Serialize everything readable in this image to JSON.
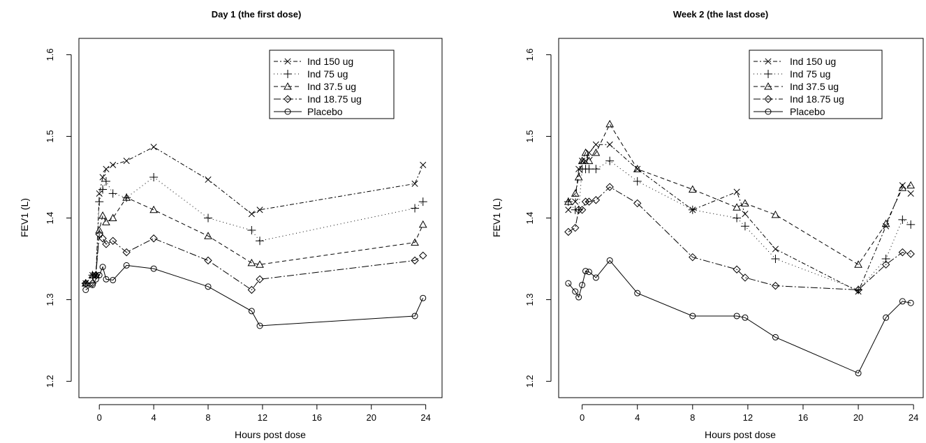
{
  "colors": {
    "ink": "#000000",
    "background": "#ffffff"
  },
  "chart_data": [
    {
      "type": "line",
      "title": "Day 1 (the first dose)",
      "xlabel": "Hours post dose",
      "ylabel": "FEV1 (L)",
      "xlim": [
        -1.5,
        25.2
      ],
      "ylim": [
        1.18,
        1.62
      ],
      "xticks": [
        0,
        4,
        8,
        12,
        16,
        20,
        24
      ],
      "yticks": [
        1.2,
        1.3,
        1.4,
        1.5,
        1.6
      ],
      "grid": false,
      "legend_position": "top-right",
      "series": [
        {
          "name": "Ind 150 ug",
          "marker": "x",
          "dash": "6,3,2,3",
          "x": [
            -1,
            -0.5,
            -0.25,
            0,
            0.25,
            0.5,
            1,
            2,
            4,
            8,
            11.2,
            11.8,
            23.2,
            23.8
          ],
          "y": [
            1.32,
            1.33,
            1.33,
            1.43,
            1.45,
            1.46,
            1.465,
            1.47,
            1.487,
            1.447,
            1.405,
            1.41,
            1.442,
            1.465
          ]
        },
        {
          "name": "Ind 75 ug",
          "marker": "plus",
          "dash": "1,4",
          "x": [
            -1,
            -0.5,
            -0.25,
            0,
            0.25,
            0.5,
            1,
            2,
            4,
            8,
            11.2,
            11.8,
            23.2,
            23.8
          ],
          "y": [
            1.32,
            1.33,
            1.33,
            1.42,
            1.435,
            1.445,
            1.43,
            1.425,
            1.45,
            1.4,
            1.385,
            1.372,
            1.412,
            1.42
          ]
        },
        {
          "name": "Ind 37.5 ug",
          "marker": "triangle",
          "dash": "6,4",
          "x": [
            -1,
            -0.5,
            -0.25,
            0,
            0.25,
            0.5,
            1,
            2,
            4,
            8,
            11.2,
            11.8,
            23.2,
            23.8
          ],
          "y": [
            1.32,
            1.33,
            1.33,
            1.385,
            1.403,
            1.395,
            1.4,
            1.425,
            1.41,
            1.378,
            1.345,
            1.343,
            1.37,
            1.392
          ]
        },
        {
          "name": "Ind 18.75 ug",
          "marker": "diamond",
          "dash": "10,3,2,3",
          "x": [
            -1,
            -0.5,
            -0.25,
            0,
            0.25,
            0.5,
            1,
            2,
            4,
            8,
            11.2,
            11.8,
            23.2,
            23.8
          ],
          "y": [
            1.32,
            1.32,
            1.33,
            1.38,
            1.375,
            1.368,
            1.372,
            1.358,
            1.375,
            1.348,
            1.312,
            1.325,
            1.348,
            1.354
          ]
        },
        {
          "name": "Placebo",
          "marker": "circle",
          "dash": "",
          "x": [
            -1,
            -0.5,
            -0.25,
            0,
            0.25,
            0.5,
            1,
            2,
            4,
            8,
            11.2,
            11.8,
            23.2,
            23.8
          ],
          "y": [
            1.312,
            1.318,
            1.325,
            1.33,
            1.34,
            1.325,
            1.324,
            1.342,
            1.338,
            1.316,
            1.286,
            1.268,
            1.28,
            1.302
          ]
        }
      ]
    },
    {
      "type": "line",
      "title": "Week 2 (the last dose)",
      "xlabel": "Hours post dose",
      "ylabel": "FEV1 (L)",
      "xlim": [
        -1.7,
        24.7
      ],
      "ylim": [
        1.18,
        1.62
      ],
      "xticks": [
        0,
        4,
        8,
        12,
        16,
        20,
        24
      ],
      "yticks": [
        1.2,
        1.3,
        1.4,
        1.5,
        1.6
      ],
      "grid": false,
      "legend_position": "top-right",
      "series": [
        {
          "name": "Ind 150 ug",
          "marker": "x",
          "dash": "6,3,2,3",
          "x": [
            -1,
            -0.5,
            -0.25,
            0,
            0.25,
            0.5,
            1,
            2,
            4,
            8,
            11.2,
            11.8,
            14,
            20,
            22,
            23.2,
            23.8
          ],
          "y": [
            1.41,
            1.42,
            1.46,
            1.47,
            1.47,
            1.48,
            1.49,
            1.49,
            1.46,
            1.41,
            1.432,
            1.405,
            1.362,
            1.31,
            1.39,
            1.44,
            1.43
          ]
        },
        {
          "name": "Ind 75 ug",
          "marker": "plus",
          "dash": "1,4",
          "x": [
            -1,
            -0.5,
            -0.25,
            0,
            0.25,
            0.5,
            1,
            2,
            4,
            8,
            11.2,
            11.8,
            14,
            20,
            22,
            23.2,
            23.8
          ],
          "y": [
            1.42,
            1.41,
            1.41,
            1.46,
            1.46,
            1.46,
            1.46,
            1.47,
            1.445,
            1.41,
            1.4,
            1.39,
            1.35,
            1.312,
            1.35,
            1.398,
            1.392
          ]
        },
        {
          "name": "Ind 37.5 ug",
          "marker": "triangle",
          "dash": "6,4",
          "x": [
            -1,
            -0.5,
            -0.25,
            0,
            0.25,
            0.5,
            1,
            2,
            4,
            8,
            11.2,
            11.8,
            14,
            20,
            22,
            23.2,
            23.8
          ],
          "y": [
            1.42,
            1.43,
            1.45,
            1.47,
            1.48,
            1.47,
            1.48,
            1.515,
            1.46,
            1.435,
            1.413,
            1.418,
            1.404,
            1.343,
            1.393,
            1.437,
            1.44
          ]
        },
        {
          "name": "Ind 18.75 ug",
          "marker": "diamond",
          "dash": "10,3,2,3",
          "x": [
            -1,
            -0.5,
            -0.25,
            0,
            0.25,
            0.5,
            1,
            2,
            4,
            8,
            11.2,
            11.8,
            14,
            20,
            22,
            23.2,
            23.8
          ],
          "y": [
            1.383,
            1.388,
            1.41,
            1.41,
            1.42,
            1.42,
            1.422,
            1.438,
            1.418,
            1.352,
            1.337,
            1.327,
            1.317,
            1.312,
            1.343,
            1.358,
            1.356
          ]
        },
        {
          "name": "Placebo",
          "marker": "circle",
          "dash": "",
          "x": [
            -1,
            -0.5,
            -0.25,
            0,
            0.25,
            0.5,
            1,
            2,
            4,
            8,
            11.2,
            11.8,
            14,
            20,
            22,
            23.2,
            23.8
          ],
          "y": [
            1.32,
            1.31,
            1.303,
            1.318,
            1.335,
            1.334,
            1.327,
            1.348,
            1.308,
            1.28,
            1.28,
            1.278,
            1.254,
            1.21,
            1.278,
            1.298,
            1.296
          ]
        }
      ]
    }
  ]
}
